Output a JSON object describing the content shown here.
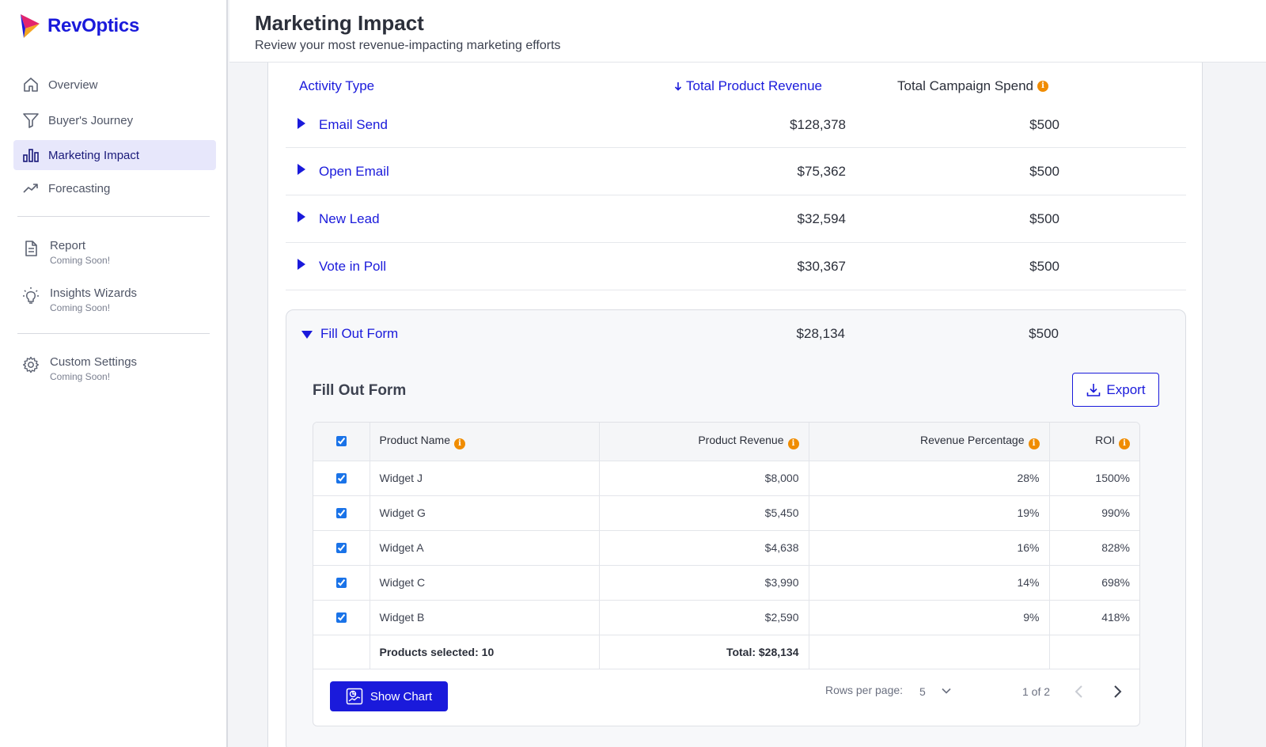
{
  "brand": {
    "name": "RevOptics"
  },
  "sidebar": {
    "items": [
      {
        "label": "Overview",
        "icon": "home-icon"
      },
      {
        "label": "Buyer's Journey",
        "icon": "funnel-icon"
      },
      {
        "label": "Marketing Impact",
        "icon": "bar-chart-icon",
        "active": true
      },
      {
        "label": "Forecasting",
        "icon": "trend-up-icon"
      },
      {
        "label": "Report",
        "sub": "Coming Soon!",
        "icon": "document-icon"
      },
      {
        "label": "Insights Wizards",
        "sub": "Coming Soon!",
        "icon": "lightbulb-icon"
      },
      {
        "label": "Custom Settings",
        "sub": "Coming Soon!",
        "icon": "gear-icon"
      }
    ]
  },
  "header": {
    "title": "Marketing Impact",
    "subtitle": "Review your most revenue-impacting marketing efforts"
  },
  "activity_table": {
    "columns": {
      "type": "Activity Type",
      "revenue": "Total Product Revenue",
      "spend": "Total Campaign Spend"
    },
    "rows": [
      {
        "name": "Email Send",
        "revenue": "$128,378",
        "spend": "$500"
      },
      {
        "name": "Open Email",
        "revenue": "$75,362",
        "spend": "$500"
      },
      {
        "name": "New Lead",
        "revenue": "$32,594",
        "spend": "$500"
      },
      {
        "name": "Vote in Poll",
        "revenue": "$30,367",
        "spend": "$500"
      },
      {
        "name": "Fill Out Form",
        "revenue": "$28,134",
        "spend": "$500"
      }
    ]
  },
  "detail": {
    "title": "Fill Out Form",
    "export_label": "Export",
    "columns": {
      "product": "Product Name",
      "revenue": "Product Revenue",
      "percentage": "Revenue Percentage",
      "roi": "ROI"
    },
    "rows": [
      {
        "product": "Widget J",
        "revenue": "$8,000",
        "percentage": "28%",
        "roi": "1500%",
        "checked": true
      },
      {
        "product": "Widget G",
        "revenue": "$5,450",
        "percentage": "19%",
        "roi": "990%",
        "checked": true
      },
      {
        "product": "Widget A",
        "revenue": "$4,638",
        "percentage": "16%",
        "roi": "828%",
        "checked": true
      },
      {
        "product": "Widget C",
        "revenue": "$3,990",
        "percentage": "14%",
        "roi": "698%",
        "checked": true
      },
      {
        "product": "Widget B",
        "revenue": "$2,590",
        "percentage": "9%",
        "roi": "418%",
        "checked": true
      }
    ],
    "footer": {
      "selected": "Products selected: 10",
      "total": "Total: $28,134"
    },
    "show_chart_label": "Show Chart",
    "pagination": {
      "rows_per_page_label": "Rows per page:",
      "rows_per_page": "5",
      "page_info": "1 of 2"
    }
  },
  "colors": {
    "accent": "#1a1adb",
    "info": "#f08c00",
    "active_nav_bg": "#e7e7fb"
  }
}
